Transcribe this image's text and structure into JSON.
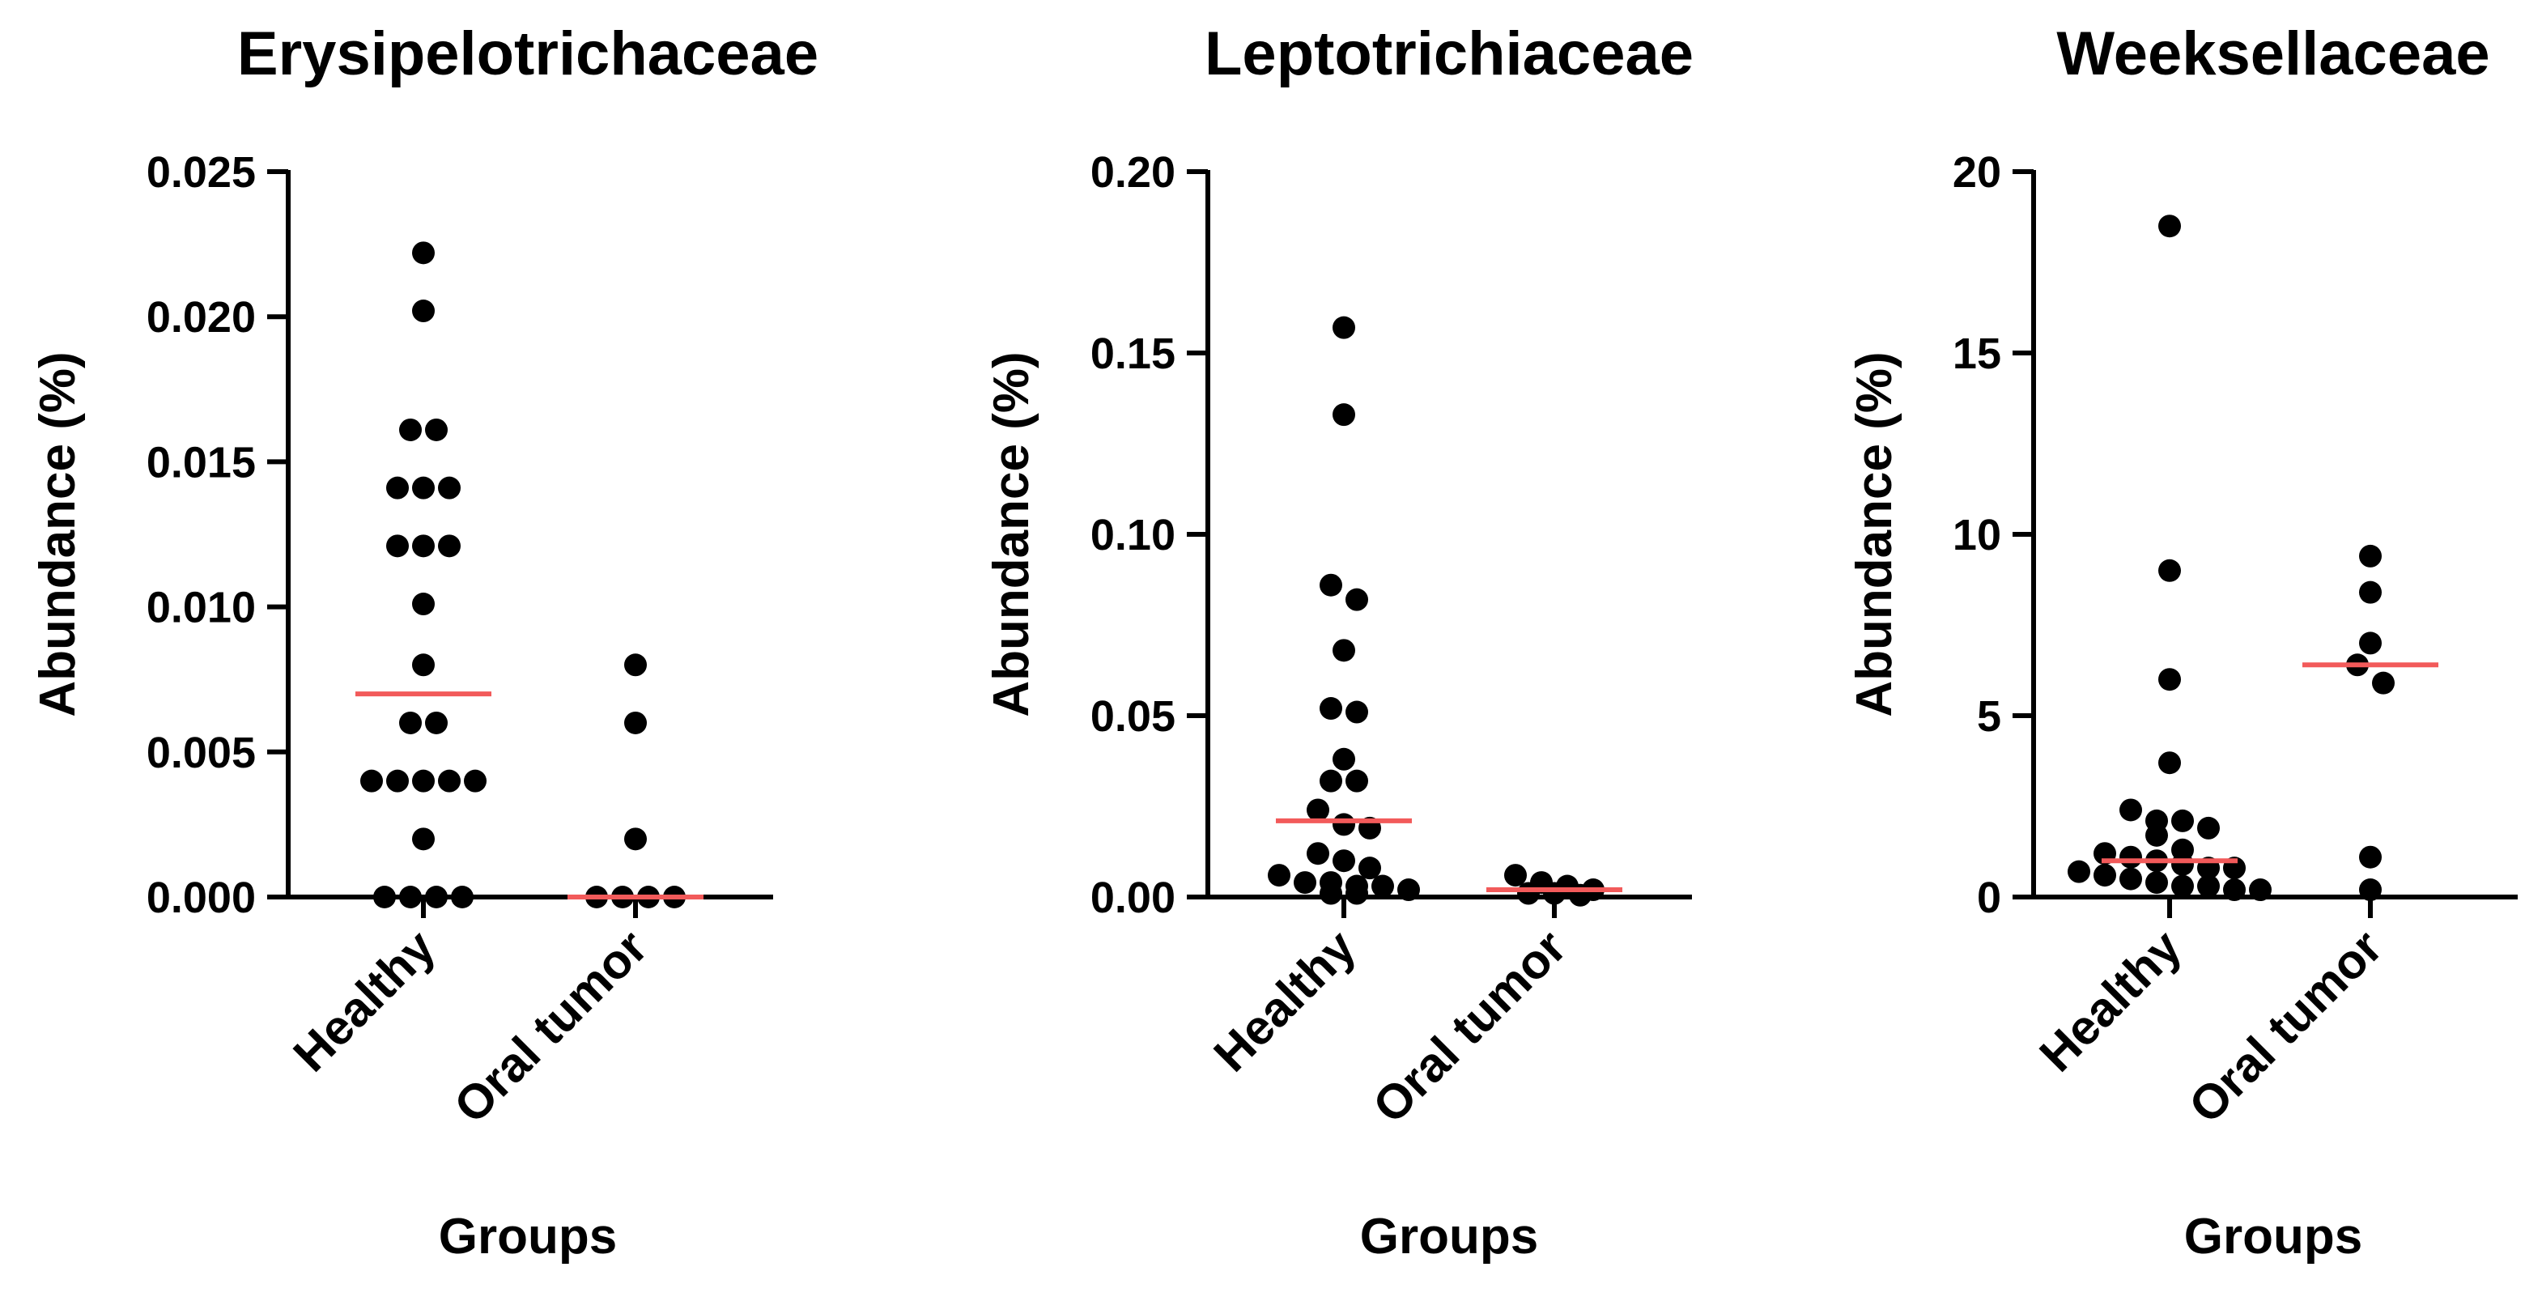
{
  "chart_data": [
    {
      "type": "scatter",
      "title": "Erysipelotrichaceae",
      "ylabel": "Abundance (%)",
      "xlabel": "Groups",
      "ylim": [
        0,
        0.025
      ],
      "yticks": [
        "0.000",
        "0.005",
        "0.010",
        "0.015",
        "0.020",
        "0.025"
      ],
      "categories": [
        "Healthy",
        "Oral tumor"
      ],
      "series": [
        {
          "name": "Healthy",
          "median": 0.007,
          "values": [
            0.0222,
            0.0202,
            0.0161,
            0.0161,
            0.0141,
            0.0141,
            0.0141,
            0.0121,
            0.0121,
            0.0121,
            0.0101,
            0.008,
            0.006,
            0.006,
            0.004,
            0.004,
            0.004,
            0.004,
            0.004,
            0.002,
            0,
            0,
            0,
            0
          ]
        },
        {
          "name": "Oral tumor",
          "median": 0.0,
          "values": [
            0.008,
            0.006,
            0.002,
            0,
            0,
            0,
            0
          ]
        }
      ]
    },
    {
      "type": "scatter",
      "title": "Leptotrichiaceae",
      "ylabel": "Abundance (%)",
      "xlabel": "Groups",
      "ylim": [
        0,
        0.2
      ],
      "yticks": [
        "0.00",
        "0.05",
        "0.10",
        "0.15",
        "0.20"
      ],
      "categories": [
        "Healthy",
        "Oral tumor"
      ],
      "series": [
        {
          "name": "Healthy",
          "median": 0.021,
          "values": [
            0.157,
            0.133,
            0.086,
            0.082,
            0.068,
            0.052,
            0.051,
            0.038,
            0.032,
            0.032,
            0.024,
            0.02,
            0.019,
            0.012,
            0.01,
            0.008,
            0.006,
            0.004,
            0.004,
            0.003,
            0.003,
            0.002,
            0.001,
            0.001
          ]
        },
        {
          "name": "Oral tumor",
          "median": 0.002,
          "values": [
            0.006,
            0.004,
            0.003,
            0.002,
            0.001,
            0.001,
            0.0005
          ]
        }
      ]
    },
    {
      "type": "scatter",
      "title": "Weeksellaceae",
      "ylabel": "Abundance (%)",
      "xlabel": "Groups",
      "ylim": [
        0,
        20
      ],
      "yticks": [
        "0",
        "5",
        "10",
        "15",
        "20"
      ],
      "categories": [
        "Healthy",
        "Oral tumor"
      ],
      "series": [
        {
          "name": "Healthy",
          "median": 1.0,
          "values": [
            18.5,
            9.0,
            6.0,
            3.7,
            2.4,
            2.1,
            2.1,
            1.9,
            1.7,
            1.3,
            1.2,
            1.1,
            1.0,
            0.9,
            0.8,
            0.8,
            0.7,
            0.6,
            0.5,
            0.4,
            0.3,
            0.3,
            0.2,
            0.2
          ]
        },
        {
          "name": "Oral tumor",
          "median": 6.4,
          "values": [
            9.4,
            8.4,
            7.0,
            6.4,
            5.9,
            1.1,
            0.2
          ]
        }
      ]
    }
  ]
}
